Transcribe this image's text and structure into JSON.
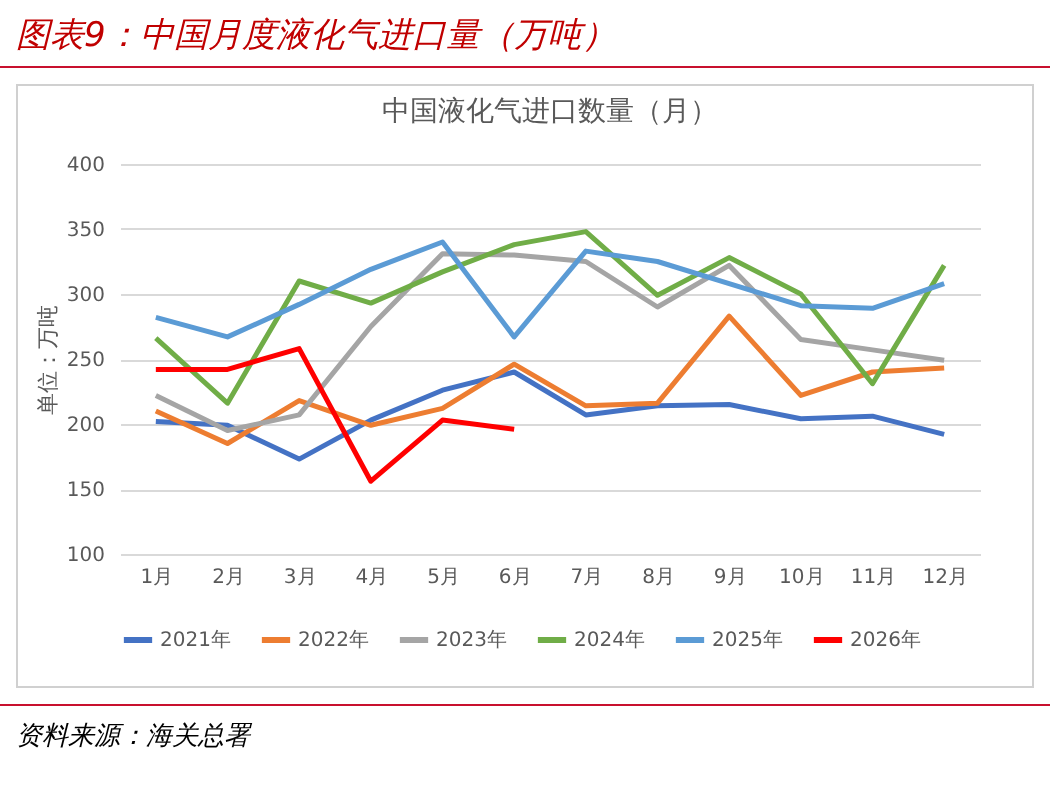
{
  "chart_data": {
    "type": "line",
    "title": "中国液化气进口数量（月）",
    "subtitle": "图表9：中国月度液化气进口量（万吨）",
    "ylabel": "单位：万吨",
    "annotations": [
      "资料来源：海关总署"
    ],
    "categories": [
      "1月",
      "2月",
      "3月",
      "4月",
      "5月",
      "6月",
      "7月",
      "8月",
      "9月",
      "10月",
      "11月",
      "12月"
    ],
    "series": [
      {
        "name": "2021年",
        "color": "#4472c4",
        "values": [
          202,
          199,
          173,
          203,
          226,
          240,
          207,
          214,
          215,
          204,
          206,
          192
        ]
      },
      {
        "name": "2022年",
        "color": "#ed7d31",
        "values": [
          210,
          185,
          218,
          199,
          212,
          246,
          214,
          216,
          283,
          222,
          240,
          243
        ]
      },
      {
        "name": "2023年",
        "color": "#a5a5a5",
        "values": [
          222,
          195,
          207,
          275,
          331,
          330,
          325,
          290,
          322,
          265,
          257,
          249
        ]
      },
      {
        "name": "2024年",
        "color": "#70ad47",
        "values": [
          266,
          216,
          310,
          293,
          317,
          338,
          348,
          299,
          328,
          300,
          231,
          322
        ]
      },
      {
        "name": "2025年",
        "color": "#5b9bd5",
        "values": [
          282,
          267,
          292,
          319,
          340,
          267,
          333,
          325,
          308,
          291,
          289,
          308
        ]
      },
      {
        "name": "2026年",
        "color": "#ff0000",
        "values": [
          242,
          242,
          258,
          156,
          203,
          196,
          null,
          null,
          null,
          null,
          null,
          null
        ]
      }
    ],
    "ylim": [
      100,
      400
    ],
    "yticks": [
      100,
      150,
      200,
      250,
      300,
      350,
      400
    ],
    "grid": "y",
    "legend": "bottom",
    "marker": "none",
    "line_style": "solid"
  }
}
